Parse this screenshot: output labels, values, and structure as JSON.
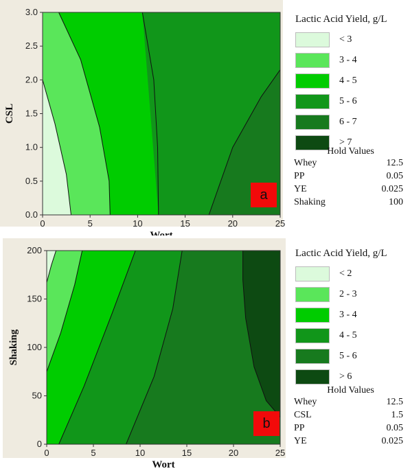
{
  "chart_data": [
    {
      "type": "contour",
      "panel_label": "a",
      "xlabel": "Wort",
      "ylabel": "CSL",
      "xlim": [
        0,
        25
      ],
      "ylim": [
        0,
        3
      ],
      "xticks": [
        "0",
        "5",
        "10",
        "15",
        "20",
        "25"
      ],
      "yticks": [
        "0.0",
        "0.5",
        "1.0",
        "1.5",
        "2.0",
        "2.5",
        "3.0"
      ],
      "legend_title": "Lactic Acid Yield, g/L",
      "levels": [
        {
          "label": "< 3",
          "color": "#dcfadc"
        },
        {
          "label": "3 - 4",
          "color": "#5ae65a"
        },
        {
          "label": "4 - 5",
          "color": "#00cc00"
        },
        {
          "label": "5 - 6",
          "color": "#11961a"
        },
        {
          "label": "6 - 7",
          "color": "#177a1e"
        },
        {
          "label": "> 7",
          "color": "#0d4a12"
        }
      ],
      "contours": [
        {
          "level": 3,
          "points": [
            [
              0,
              2.0
            ],
            [
              1.3,
              1.35
            ],
            [
              2.5,
              0.6
            ],
            [
              3.0,
              0.0
            ]
          ]
        },
        {
          "level": 4,
          "points": [
            [
              1.7,
              3.0
            ],
            [
              4.0,
              2.3
            ],
            [
              6.0,
              1.3
            ],
            [
              7.0,
              0.5
            ],
            [
              7.1,
              0.0
            ]
          ]
        },
        {
          "level": 5,
          "points": [
            [
              10.5,
              3.0
            ],
            [
              11.7,
              2.0
            ],
            [
              12.1,
              1.0
            ],
            [
              12.2,
              0.0
            ]
          ]
        },
        {
          "level": 6,
          "points": [
            [
              17.5,
              0.0
            ],
            [
              20.0,
              1.0
            ],
            [
              23.0,
              1.75
            ],
            [
              25.0,
              2.15
            ]
          ]
        }
      ],
      "hold_values_title": "Hold Values",
      "hold_values": [
        {
          "name": "Whey",
          "value": "12.5"
        },
        {
          "name": "PP",
          "value": "0.05"
        },
        {
          "name": "YE",
          "value": "0.025"
        },
        {
          "name": "Shaking",
          "value": "100"
        }
      ]
    },
    {
      "type": "contour",
      "panel_label": "b",
      "xlabel": "Wort",
      "ylabel": "Shaking",
      "xlim": [
        0,
        25
      ],
      "ylim": [
        0,
        200
      ],
      "xticks": [
        "0",
        "5",
        "10",
        "15",
        "20",
        "25"
      ],
      "yticks": [
        "0",
        "50",
        "100",
        "150",
        "200"
      ],
      "legend_title": "Lactic Acid Yield, g/L",
      "levels": [
        {
          "label": "< 2",
          "color": "#dcfadc"
        },
        {
          "label": "2 - 3",
          "color": "#5ae65a"
        },
        {
          "label": "3 - 4",
          "color": "#00cc00"
        },
        {
          "label": "4 - 5",
          "color": "#11961a"
        },
        {
          "label": "5 - 6",
          "color": "#177a1e"
        },
        {
          "label": "> 6",
          "color": "#0d4a12"
        }
      ],
      "contours": [
        {
          "level": 2,
          "points": [
            [
              0,
              167
            ],
            [
              0.5,
              185
            ],
            [
              1.0,
              200
            ]
          ]
        },
        {
          "level": 3,
          "points": [
            [
              0,
              75
            ],
            [
              1.5,
              115
            ],
            [
              3.0,
              165
            ],
            [
              3.8,
              200
            ]
          ]
        },
        {
          "level": 4,
          "points": [
            [
              1.3,
              0
            ],
            [
              4.0,
              60
            ],
            [
              7.0,
              135
            ],
            [
              9.5,
              200
            ]
          ]
        },
        {
          "level": 5,
          "points": [
            [
              8.5,
              0
            ],
            [
              11.5,
              70
            ],
            [
              13.5,
              140
            ],
            [
              14.5,
              200
            ]
          ]
        },
        {
          "level": 6,
          "points": [
            [
              25,
              28
            ],
            [
              23.5,
              45
            ],
            [
              22.2,
              80
            ],
            [
              21.3,
              130
            ],
            [
              21.0,
              170
            ],
            [
              21.0,
              200
            ]
          ]
        }
      ],
      "hold_values_title": "Hold Values",
      "hold_values": [
        {
          "name": "Whey",
          "value": "12.5"
        },
        {
          "name": "CSL",
          "value": "1.5"
        },
        {
          "name": "PP",
          "value": "0.05"
        },
        {
          "name": "YE",
          "value": "0.025"
        }
      ]
    }
  ]
}
